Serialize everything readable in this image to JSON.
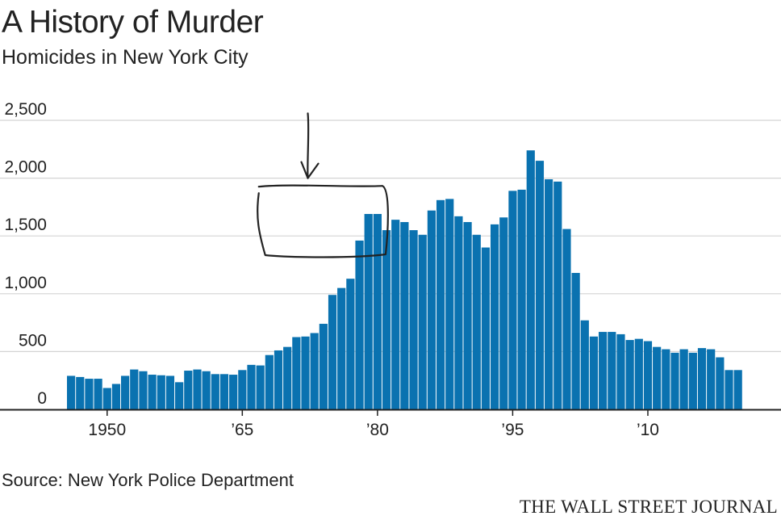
{
  "header": {
    "title": "A History of Murder",
    "subtitle": "Homicides in New York City"
  },
  "footer": {
    "source": "Source: New York Police Department",
    "brand": "THE WALL STREET JOURNAL"
  },
  "colors": {
    "bar": "#0a72b0",
    "grid": "#d4d4d4",
    "axis": "#222222",
    "annotation": "#222222"
  },
  "chart_data": {
    "type": "bar",
    "title": "A History of Murder",
    "subtitle": "Homicides in New York City",
    "xlabel": "",
    "ylabel": "",
    "ylim": [
      0,
      2500
    ],
    "yticks": [
      {
        "value": 0,
        "label": "0"
      },
      {
        "value": 500,
        "label": "500"
      },
      {
        "value": 1000,
        "label": "1,000"
      },
      {
        "value": 1500,
        "label": "1,500"
      },
      {
        "value": 2000,
        "label": "2,000"
      },
      {
        "value": 2500,
        "label": "2,500"
      }
    ],
    "xticks": [
      {
        "value": 1950,
        "label": "1950"
      },
      {
        "value": 1965,
        "label": "’65"
      },
      {
        "value": 1980,
        "label": "’80"
      },
      {
        "value": 1995,
        "label": "’95"
      },
      {
        "value": 2010,
        "label": "’10"
      }
    ],
    "categories": [
      1946,
      1947,
      1948,
      1949,
      1950,
      1951,
      1952,
      1953,
      1954,
      1955,
      1956,
      1957,
      1958,
      1959,
      1960,
      1961,
      1962,
      1963,
      1964,
      1965,
      1966,
      1967,
      1968,
      1969,
      1970,
      1971,
      1972,
      1973,
      1974,
      1975,
      1976,
      1977,
      1978,
      1979,
      1980,
      1981,
      1982,
      1983,
      1984,
      1985,
      1986,
      1987,
      1988,
      1989,
      1990,
      1991,
      1992,
      1993,
      1994,
      1995,
      1996,
      1997,
      1998,
      1999,
      2000,
      2001,
      2002,
      2003,
      2004,
      2005,
      2006,
      2007,
      2008,
      2009,
      2010,
      2011,
      2012,
      2013,
      2014,
      2015,
      2016,
      2017,
      2018,
      2019,
      2020
    ],
    "values": [
      290,
      280,
      265,
      265,
      185,
      220,
      290,
      345,
      330,
      300,
      295,
      290,
      235,
      335,
      345,
      330,
      305,
      305,
      300,
      340,
      385,
      380,
      470,
      510,
      540,
      625,
      630,
      660,
      740,
      990,
      1050,
      1130,
      1460,
      1690,
      1690,
      1550,
      1640,
      1620,
      1550,
      1510,
      1720,
      1810,
      1820,
      1670,
      1620,
      1510,
      1400,
      1600,
      1660,
      1890,
      1900,
      2240,
      2150,
      1990,
      1970,
      1560,
      1180,
      770,
      630,
      670,
      670,
      650,
      600,
      610,
      590,
      540,
      520,
      490,
      520,
      490,
      530,
      520,
      450,
      340,
      340
    ]
  },
  "annotations": {
    "box_years": [
      1968,
      1980
    ],
    "box_values": [
      1320,
      1940
    ],
    "arrow_year": 1972,
    "arrow_value_from": 2560,
    "arrow_value_to": 2000
  }
}
